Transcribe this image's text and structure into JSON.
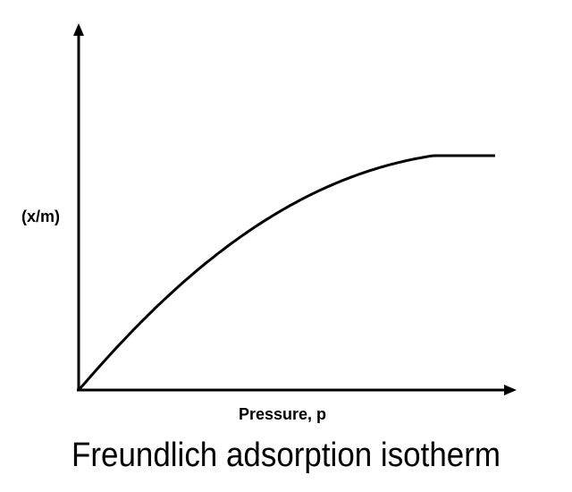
{
  "chart_data": {
    "type": "line",
    "title": "Freundlich adsorption isotherm",
    "xlabel": "Pressure, p",
    "ylabel": "(x/m)",
    "grid": false,
    "legend": "none",
    "series": [
      {
        "shape": "saturating curve rising steeply from origin and leveling off",
        "x": [
          0,
          0.02,
          0.05,
          0.1,
          0.2,
          0.3,
          0.4,
          0.5,
          0.6,
          0.7,
          0.8,
          0.9,
          1.0
        ],
        "y": [
          0,
          0.18,
          0.3,
          0.44,
          0.62,
          0.74,
          0.83,
          0.89,
          0.94,
          0.97,
          0.99,
          1.0,
          1.0
        ]
      }
    ],
    "colors": {
      "line": "#000000",
      "axes": "#000000",
      "background": "#ffffff"
    }
  }
}
